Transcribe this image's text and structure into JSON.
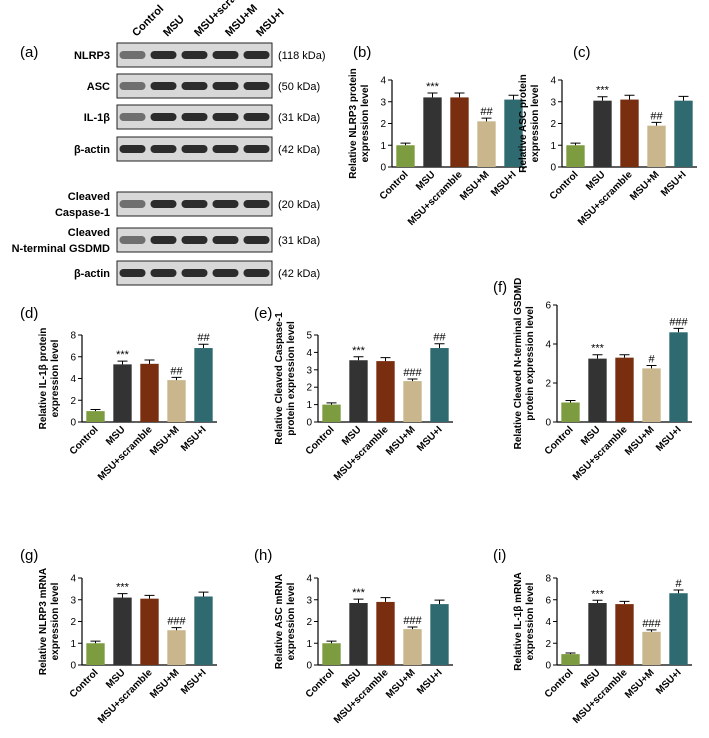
{
  "blot": {
    "panel_label": "(a)",
    "lanes": [
      "Control",
      "MSU",
      "MSU+scramble",
      "MSU+M",
      "MSU+I"
    ],
    "rows": [
      {
        "label": [
          "NLRP3"
        ],
        "size": "(118 kDa)"
      },
      {
        "label": [
          "ASC"
        ],
        "size": "(50 kDa)"
      },
      {
        "label": [
          "IL-1β"
        ],
        "size": "(31 kDa)"
      },
      {
        "label": [
          "β-actin"
        ],
        "size": "(42 kDa)"
      },
      {
        "label": [
          "Cleaved",
          "Caspase-1"
        ],
        "size": "(20 kDa)"
      },
      {
        "label": [
          "Cleaved",
          "N-terminal GSDMD"
        ],
        "size": "(31 kDa)"
      },
      {
        "label": [
          "β-actin"
        ],
        "size": "(42 kDa)"
      }
    ]
  },
  "chart_data": [
    {
      "type": "bar",
      "panel_label": "(b)",
      "ylabel": [
        "Relative NLRP3 protein",
        "expression level"
      ],
      "categories": [
        "Control",
        "MSU",
        "MSU+scramble",
        "MSU+M",
        "MSU+I"
      ],
      "colors": [
        "#7d9b3f",
        "#333333",
        "#7a2e10",
        "#c9b68c",
        "#2e6a70"
      ],
      "values": [
        1,
        3.2,
        3.2,
        2.1,
        3.1
      ],
      "errors": [
        0.1,
        0.2,
        0.2,
        0.15,
        0.2
      ],
      "annotations": [
        null,
        "***",
        null,
        "##",
        null
      ],
      "ylim": [
        0,
        4
      ],
      "yticks": [
        0,
        1,
        2,
        3,
        4
      ]
    },
    {
      "type": "bar",
      "panel_label": "(c)",
      "ylabel": [
        "Relative ASC protein",
        "expression level"
      ],
      "categories": [
        "Control",
        "MSU",
        "MSU+scramble",
        "MSU+M",
        "MSU+I"
      ],
      "colors": [
        "#7d9b3f",
        "#333333",
        "#7a2e10",
        "#c9b68c",
        "#2e6a70"
      ],
      "values": [
        1,
        3.05,
        3.1,
        1.9,
        3.05
      ],
      "errors": [
        0.1,
        0.18,
        0.2,
        0.15,
        0.2
      ],
      "annotations": [
        null,
        "***",
        null,
        "##",
        null
      ],
      "ylim": [
        0,
        4
      ],
      "yticks": [
        0,
        1,
        2,
        3,
        4
      ]
    },
    {
      "type": "bar",
      "panel_label": "(d)",
      "ylabel": [
        "Relative IL-1β protein",
        "expression level"
      ],
      "categories": [
        "Control",
        "MSU",
        "MSU+scramble",
        "MSU+M",
        "MSU+I"
      ],
      "colors": [
        "#7d9b3f",
        "#333333",
        "#7a2e10",
        "#c9b68c",
        "#2e6a70"
      ],
      "values": [
        1,
        5.3,
        5.35,
        3.85,
        6.8
      ],
      "errors": [
        0.15,
        0.3,
        0.35,
        0.25,
        0.35
      ],
      "annotations": [
        null,
        "***",
        null,
        "##",
        "##"
      ],
      "ylim": [
        0,
        8
      ],
      "yticks": [
        0,
        2,
        4,
        6,
        8
      ]
    },
    {
      "type": "bar",
      "panel_label": "(e)",
      "ylabel": [
        "Relative Cleaved Caspase-1",
        "protein expression level"
      ],
      "categories": [
        "Control",
        "MSU",
        "MSU+scramble",
        "MSU+M",
        "MSU+I"
      ],
      "colors": [
        "#7d9b3f",
        "#333333",
        "#7a2e10",
        "#c9b68c",
        "#2e6a70"
      ],
      "values": [
        1,
        3.55,
        3.5,
        2.35,
        4.25
      ],
      "errors": [
        0.1,
        0.2,
        0.2,
        0.12,
        0.25
      ],
      "annotations": [
        null,
        "***",
        null,
        "###",
        "##"
      ],
      "ylim": [
        0,
        5
      ],
      "yticks": [
        0,
        1,
        2,
        3,
        4,
        5
      ]
    },
    {
      "type": "bar",
      "panel_label": "(f)",
      "ylabel": [
        "Relative Cleaved N-terminal GSDMD",
        "protein expression level"
      ],
      "categories": [
        "Control",
        "MSU",
        "MSU+scramble",
        "MSU+M",
        "MSU+I"
      ],
      "colors": [
        "#7d9b3f",
        "#333333",
        "#7a2e10",
        "#c9b68c",
        "#2e6a70"
      ],
      "values": [
        1,
        3.25,
        3.3,
        2.75,
        4.6
      ],
      "errors": [
        0.1,
        0.2,
        0.15,
        0.15,
        0.2
      ],
      "annotations": [
        null,
        "***",
        null,
        "#",
        "###"
      ],
      "ylim": [
        0,
        6
      ],
      "yticks": [
        0,
        2,
        4,
        6
      ]
    },
    {
      "type": "bar",
      "panel_label": "(g)",
      "ylabel": [
        "Relative NLRP3 mRNA",
        "expression level"
      ],
      "categories": [
        "Control",
        "MSU",
        "MSU+scramble",
        "MSU+M",
        "MSU+I"
      ],
      "colors": [
        "#7d9b3f",
        "#333333",
        "#7a2e10",
        "#c9b68c",
        "#2e6a70"
      ],
      "values": [
        1,
        3.1,
        3.05,
        1.6,
        3.15
      ],
      "errors": [
        0.1,
        0.18,
        0.15,
        0.12,
        0.2
      ],
      "annotations": [
        null,
        "***",
        null,
        "###",
        null
      ],
      "ylim": [
        0,
        4
      ],
      "yticks": [
        0,
        1,
        2,
        3,
        4
      ]
    },
    {
      "type": "bar",
      "panel_label": "(h)",
      "ylabel": [
        "Relative ASC mRNA",
        "expression level"
      ],
      "categories": [
        "Control",
        "MSU",
        "MSU+scramble",
        "MSU+M",
        "MSU+I"
      ],
      "colors": [
        "#7d9b3f",
        "#333333",
        "#7a2e10",
        "#c9b68c",
        "#2e6a70"
      ],
      "values": [
        1,
        2.85,
        2.9,
        1.65,
        2.8
      ],
      "errors": [
        0.1,
        0.18,
        0.2,
        0.1,
        0.18
      ],
      "annotations": [
        null,
        "***",
        null,
        "###",
        null
      ],
      "ylim": [
        0,
        4
      ],
      "yticks": [
        0,
        1,
        2,
        3,
        4
      ]
    },
    {
      "type": "bar",
      "panel_label": "(i)",
      "ylabel": [
        "Relative IL-1β mRNA",
        "expression level"
      ],
      "categories": [
        "Control",
        "MSU",
        "MSU+scramble",
        "MSU+M",
        "MSU+I"
      ],
      "colors": [
        "#7d9b3f",
        "#333333",
        "#7a2e10",
        "#c9b68c",
        "#2e6a70"
      ],
      "values": [
        1,
        5.7,
        5.6,
        3.05,
        6.6
      ],
      "errors": [
        0.1,
        0.25,
        0.25,
        0.18,
        0.3
      ],
      "annotations": [
        null,
        "***",
        null,
        "###",
        "#"
      ],
      "ylim": [
        0,
        8
      ],
      "yticks": [
        0,
        2,
        4,
        6,
        8
      ]
    }
  ]
}
